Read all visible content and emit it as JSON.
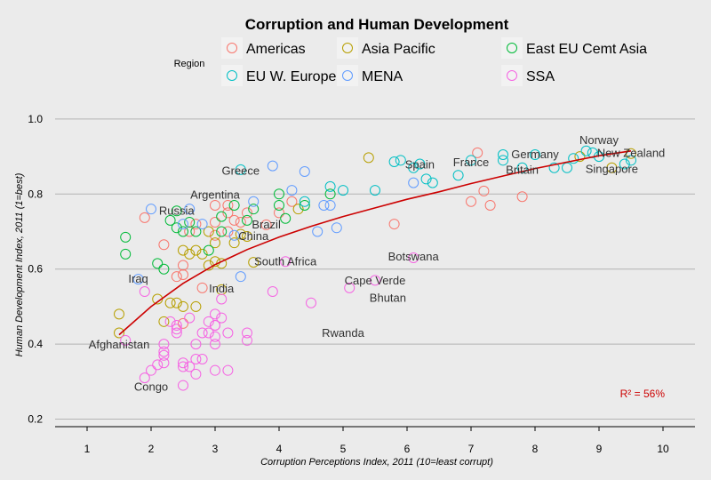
{
  "chart_data": {
    "type": "scatter",
    "title": "Corruption and Human Development",
    "xlabel": "Corruption Perceptions Index, 2011 (10=least corrupt)",
    "ylabel": "Human Development Index, 2011 (1=best)",
    "xlim": [
      0.5,
      10.5
    ],
    "ylim": [
      0.18,
      1.04
    ],
    "x_ticks": [
      1,
      2,
      3,
      4,
      5,
      6,
      7,
      8,
      9,
      10
    ],
    "y_ticks": [
      0.2,
      0.4,
      0.6,
      0.8,
      1.0
    ],
    "y_tick_labels": [
      "0.2",
      "0.4",
      "0.6",
      "0.8",
      "1.0"
    ],
    "grid": true,
    "legend": {
      "title": "Region",
      "placement": "top",
      "entries": [
        {
          "name": "Americas",
          "color": "#F8766D"
        },
        {
          "name": "Asia Pacific",
          "color": "#B79F00"
        },
        {
          "name": "East EU Cemt Asia",
          "color": "#00BA38"
        },
        {
          "name": "EU W. Europe",
          "color": "#00BFC4"
        },
        {
          "name": "MENA",
          "color": "#619CFF"
        },
        {
          "name": "SSA",
          "color": "#F564E3"
        }
      ]
    },
    "trend": {
      "color": "#cc0000",
      "x": [
        1.5,
        2.0,
        2.5,
        3.0,
        3.5,
        4.0,
        4.5,
        5.0,
        5.5,
        6.0,
        6.5,
        7.0,
        7.5,
        8.0,
        8.5,
        9.0,
        9.5
      ],
      "y": [
        0.425,
        0.5,
        0.562,
        0.612,
        0.652,
        0.685,
        0.714,
        0.74,
        0.763,
        0.786,
        0.806,
        0.828,
        0.848,
        0.868,
        0.885,
        0.902,
        0.915
      ]
    },
    "r2_label": "R² = 56%",
    "series": [
      {
        "name": "Americas",
        "points": [
          [
            1.9,
            0.737
          ],
          [
            2.2,
            0.665
          ],
          [
            2.6,
            0.7
          ],
          [
            2.7,
            0.72
          ],
          [
            3.0,
            0.77
          ],
          [
            3.0,
            0.725
          ],
          [
            3.2,
            0.77
          ],
          [
            3.3,
            0.73
          ],
          [
            3.4,
            0.725
          ],
          [
            3.5,
            0.75
          ],
          [
            3.8,
            0.718
          ],
          [
            4.0,
            0.75
          ],
          [
            4.2,
            0.78
          ],
          [
            2.4,
            0.58
          ],
          [
            2.5,
            0.585
          ],
          [
            2.8,
            0.55
          ],
          [
            2.5,
            0.61
          ],
          [
            3.0,
            0.69
          ],
          [
            5.8,
            0.72
          ],
          [
            7.0,
            0.78
          ],
          [
            7.1,
            0.91
          ],
          [
            7.2,
            0.808
          ],
          [
            7.3,
            0.77
          ],
          [
            7.8,
            0.793
          ],
          [
            2.5,
            0.455
          ],
          [
            3.2,
            0.75
          ],
          [
            3.2,
            0.7
          ]
        ]
      },
      {
        "name": "Asia Pacific",
        "points": [
          [
            1.5,
            0.48
          ],
          [
            1.5,
            0.43
          ],
          [
            2.1,
            0.52
          ],
          [
            2.2,
            0.46
          ],
          [
            2.3,
            0.51
          ],
          [
            2.4,
            0.51
          ],
          [
            2.5,
            0.5
          ],
          [
            2.5,
            0.65
          ],
          [
            2.6,
            0.64
          ],
          [
            2.7,
            0.5
          ],
          [
            2.7,
            0.65
          ],
          [
            2.8,
            0.64
          ],
          [
            2.9,
            0.61
          ],
          [
            3.0,
            0.67
          ],
          [
            3.0,
            0.62
          ],
          [
            3.1,
            0.545
          ],
          [
            3.3,
            0.67
          ],
          [
            3.5,
            0.687
          ],
          [
            3.6,
            0.618
          ],
          [
            4.3,
            0.76
          ],
          [
            5.4,
            0.897
          ],
          [
            8.7,
            0.9
          ],
          [
            9.2,
            0.87
          ],
          [
            9.5,
            0.908
          ],
          [
            2.9,
            0.7
          ],
          [
            3.4,
            0.693
          ],
          [
            3.1,
            0.615
          ]
        ]
      },
      {
        "name": "East EU Cemt Asia",
        "points": [
          [
            1.6,
            0.685
          ],
          [
            1.6,
            0.64
          ],
          [
            2.1,
            0.615
          ],
          [
            2.2,
            0.6
          ],
          [
            2.3,
            0.73
          ],
          [
            2.4,
            0.755
          ],
          [
            2.5,
            0.7
          ],
          [
            2.6,
            0.725
          ],
          [
            2.7,
            0.7
          ],
          [
            2.9,
            0.65
          ],
          [
            3.1,
            0.7
          ],
          [
            3.1,
            0.74
          ],
          [
            3.3,
            0.77
          ],
          [
            3.5,
            0.73
          ],
          [
            3.6,
            0.76
          ],
          [
            4.0,
            0.77
          ],
          [
            4.0,
            0.8
          ],
          [
            4.1,
            0.735
          ],
          [
            4.4,
            0.77
          ],
          [
            4.8,
            0.8
          ],
          [
            2.4,
            0.71
          ]
        ]
      },
      {
        "name": "EU W. Europe",
        "points": [
          [
            3.4,
            0.865
          ],
          [
            4.4,
            0.78
          ],
          [
            4.8,
            0.82
          ],
          [
            5.0,
            0.81
          ],
          [
            5.5,
            0.81
          ],
          [
            5.8,
            0.886
          ],
          [
            6.1,
            0.87
          ],
          [
            6.3,
            0.84
          ],
          [
            6.4,
            0.83
          ],
          [
            6.8,
            0.85
          ],
          [
            7.0,
            0.89
          ],
          [
            7.5,
            0.905
          ],
          [
            7.8,
            0.87
          ],
          [
            8.0,
            0.905
          ],
          [
            8.3,
            0.87
          ],
          [
            8.5,
            0.87
          ],
          [
            8.6,
            0.895
          ],
          [
            8.9,
            0.91
          ],
          [
            9.0,
            0.9
          ],
          [
            9.4,
            0.88
          ],
          [
            9.5,
            0.89
          ],
          [
            7.5,
            0.89
          ],
          [
            5.9,
            0.89
          ],
          [
            6.2,
            0.88
          ],
          [
            8.8,
            0.915
          ]
        ]
      },
      {
        "name": "MENA",
        "points": [
          [
            1.8,
            0.573
          ],
          [
            2.0,
            0.76
          ],
          [
            2.5,
            0.72
          ],
          [
            2.6,
            0.76
          ],
          [
            2.8,
            0.72
          ],
          [
            3.3,
            0.69
          ],
          [
            3.4,
            0.58
          ],
          [
            3.9,
            0.875
          ],
          [
            4.2,
            0.81
          ],
          [
            4.4,
            0.86
          ],
          [
            4.6,
            0.7
          ],
          [
            4.7,
            0.77
          ],
          [
            4.9,
            0.71
          ],
          [
            6.1,
            0.83
          ],
          [
            3.6,
            0.78
          ],
          [
            4.8,
            0.77
          ]
        ]
      },
      {
        "name": "SSA",
        "points": [
          [
            1.6,
            0.41
          ],
          [
            1.9,
            0.31
          ],
          [
            1.9,
            0.54
          ],
          [
            2.0,
            0.33
          ],
          [
            2.1,
            0.345
          ],
          [
            2.2,
            0.4
          ],
          [
            2.2,
            0.37
          ],
          [
            2.2,
            0.35
          ],
          [
            2.2,
            0.38
          ],
          [
            2.3,
            0.46
          ],
          [
            2.4,
            0.45
          ],
          [
            2.4,
            0.43
          ],
          [
            2.4,
            0.44
          ],
          [
            2.5,
            0.35
          ],
          [
            2.5,
            0.29
          ],
          [
            2.6,
            0.47
          ],
          [
            2.6,
            0.34
          ],
          [
            2.7,
            0.4
          ],
          [
            2.7,
            0.32
          ],
          [
            2.7,
            0.36
          ],
          [
            2.8,
            0.36
          ],
          [
            2.8,
            0.43
          ],
          [
            2.9,
            0.46
          ],
          [
            2.9,
            0.43
          ],
          [
            3.0,
            0.48
          ],
          [
            3.0,
            0.4
          ],
          [
            3.0,
            0.42
          ],
          [
            3.0,
            0.33
          ],
          [
            3.1,
            0.52
          ],
          [
            3.1,
            0.47
          ],
          [
            3.2,
            0.33
          ],
          [
            3.2,
            0.43
          ],
          [
            3.5,
            0.43
          ],
          [
            3.5,
            0.41
          ],
          [
            3.9,
            0.54
          ],
          [
            4.1,
            0.62
          ],
          [
            4.5,
            0.51
          ],
          [
            5.1,
            0.55
          ],
          [
            5.5,
            0.57
          ],
          [
            6.1,
            0.63
          ],
          [
            3.0,
            0.45
          ],
          [
            2.5,
            0.34
          ],
          [
            3.0,
            0.45
          ]
        ]
      }
    ],
    "annotations": [
      {
        "text": "Afghanistan",
        "x": 1.5,
        "y": 0.398
      },
      {
        "text": "Congo",
        "x": 2.0,
        "y": 0.286
      },
      {
        "text": "Iraq",
        "x": 1.8,
        "y": 0.573
      },
      {
        "text": "Russia",
        "x": 2.4,
        "y": 0.755
      },
      {
        "text": "India",
        "x": 3.1,
        "y": 0.547
      },
      {
        "text": "China",
        "x": 3.6,
        "y": 0.687
      },
      {
        "text": "Brazil",
        "x": 3.8,
        "y": 0.718
      },
      {
        "text": "Argentina",
        "x": 3.0,
        "y": 0.797
      },
      {
        "text": "Greece",
        "x": 3.4,
        "y": 0.861
      },
      {
        "text": "South Africa",
        "x": 4.1,
        "y": 0.619
      },
      {
        "text": "Rwanda",
        "x": 5.0,
        "y": 0.429
      },
      {
        "text": "Cape Verde",
        "x": 5.5,
        "y": 0.568
      },
      {
        "text": "Bhutan",
        "x": 5.7,
        "y": 0.522
      },
      {
        "text": "Botswana",
        "x": 6.1,
        "y": 0.633
      },
      {
        "text": "Spain",
        "x": 6.2,
        "y": 0.878
      },
      {
        "text": "France",
        "x": 7.0,
        "y": 0.884
      },
      {
        "text": "Germany",
        "x": 8.0,
        "y": 0.905
      },
      {
        "text": "Britain",
        "x": 7.8,
        "y": 0.863
      },
      {
        "text": "Norway",
        "x": 9.0,
        "y": 0.943
      },
      {
        "text": "New Zealand",
        "x": 9.5,
        "y": 0.908
      },
      {
        "text": "Singapore",
        "x": 9.2,
        "y": 0.866
      }
    ]
  }
}
